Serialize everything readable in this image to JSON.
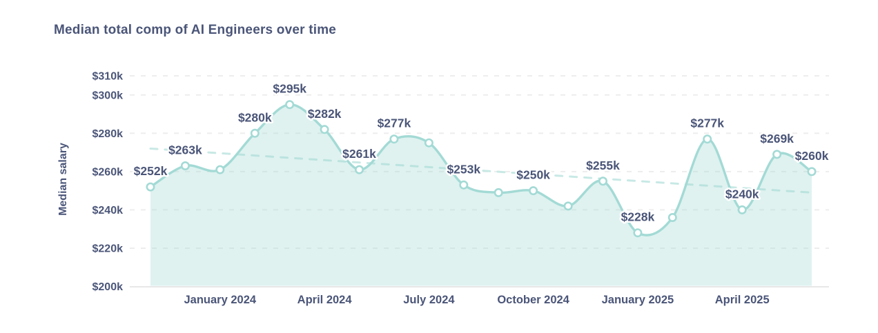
{
  "chart_data": {
    "type": "area",
    "title": "Median total comp of AI Engineers over time",
    "ylabel": "Median salary",
    "xlabel": "",
    "x": [
      "Nov 2023",
      "Dec 2023",
      "Jan 2024",
      "Feb 2024",
      "Mar 2024",
      "Apr 2024",
      "May 2024",
      "Jun 2024",
      "Jul 2024",
      "Aug 2024",
      "Sep 2024",
      "Oct 2024",
      "Nov 2024",
      "Dec 2024",
      "Jan 2025",
      "Feb 2025",
      "Mar 2025",
      "Apr 2025",
      "May 2025",
      "Jun 2025"
    ],
    "series": [
      {
        "name": "Median salary",
        "values": [
          252,
          263,
          261,
          280,
          295,
          282,
          261,
          277,
          275,
          253,
          249,
          250,
          242,
          255,
          228,
          236,
          277,
          240,
          269,
          260
        ]
      }
    ],
    "point_labels": [
      "$252k",
      "$263k",
      "",
      "$280k",
      "$295k",
      "$282k",
      "$261k",
      "$277k",
      "",
      "$253k",
      "",
      "$250k",
      "",
      "$255k",
      "$228k",
      "",
      "$277k",
      "$240k",
      "$269k",
      "$260k"
    ],
    "x_tick_indices": [
      2,
      5,
      8,
      11,
      14,
      17
    ],
    "x_tick_labels": [
      "January 2024",
      "April 2024",
      "July 2024",
      "October 2024",
      "January 2025",
      "April 2025"
    ],
    "y_ticks": [
      310,
      300,
      280,
      260,
      240,
      220,
      200
    ],
    "y_tick_labels": [
      "$310k",
      "$300k",
      "$280k",
      "$260k",
      "$240k",
      "$220k",
      "$200k"
    ],
    "ylim": [
      200,
      310
    ],
    "grid": "horizontal-dashed",
    "legend": "none",
    "trend_line": {
      "style": "dashed",
      "start_value": 272,
      "end_value": 249
    },
    "colors": {
      "line": "#a3dad5",
      "marker_fill": "#ffffff",
      "area_fill": "rgba(163,218,213,0.35)",
      "trend": "#c8e9e5",
      "grid": "#ededed",
      "axis": "#e7e7e7",
      "text": "#4a5578"
    }
  }
}
